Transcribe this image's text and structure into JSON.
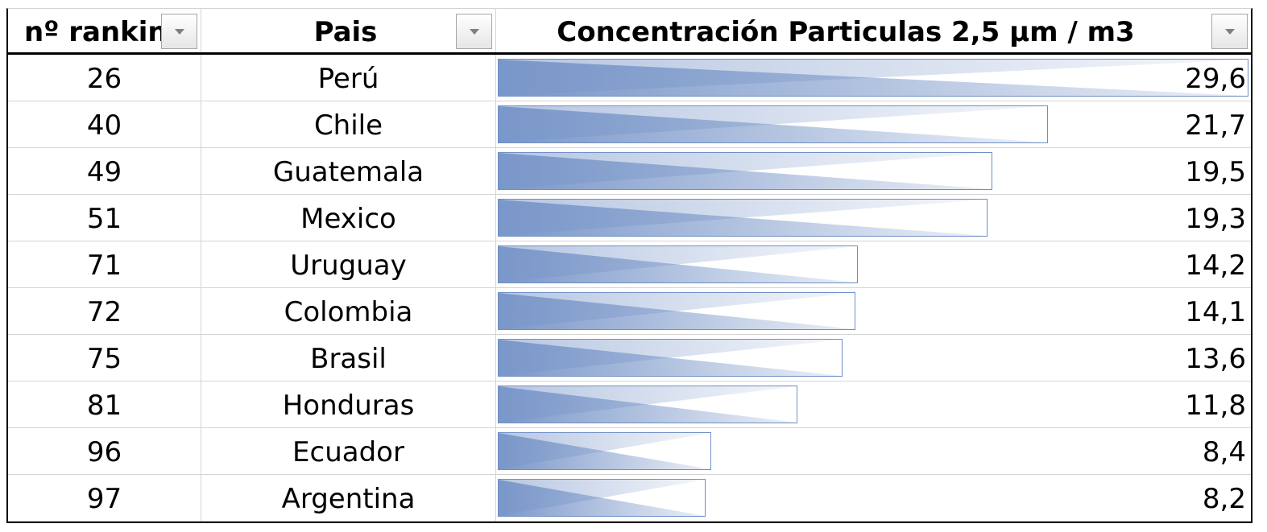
{
  "table": {
    "headers": {
      "rank": "nº ranking",
      "country": "Pais",
      "value": "Concentración Particulas 2,5 µm / m3"
    },
    "bar_color": "#7a97c9",
    "bar_border_color": "#6f8fc8",
    "rows": [
      {
        "rank": "26",
        "country": "Perú",
        "value": "29,6",
        "bar_fraction": 1.0
      },
      {
        "rank": "40",
        "country": "Chile",
        "value": "21,7",
        "bar_fraction": 0.733
      },
      {
        "rank": "49",
        "country": "Guatemala",
        "value": "19,5",
        "bar_fraction": 0.659
      },
      {
        "rank": "51",
        "country": "Mexico",
        "value": "19,3",
        "bar_fraction": 0.652
      },
      {
        "rank": "71",
        "country": "Uruguay",
        "value": "14,2",
        "bar_fraction": 0.48
      },
      {
        "rank": "72",
        "country": "Colombia",
        "value": "14,1",
        "bar_fraction": 0.476
      },
      {
        "rank": "75",
        "country": "Brasil",
        "value": "13,6",
        "bar_fraction": 0.459
      },
      {
        "rank": "81",
        "country": "Honduras",
        "value": "11,8",
        "bar_fraction": 0.399
      },
      {
        "rank": "96",
        "country": "Ecuador",
        "value": "8,4",
        "bar_fraction": 0.284
      },
      {
        "rank": "97",
        "country": "Argentina",
        "value": "8,2",
        "bar_fraction": 0.277
      }
    ]
  }
}
